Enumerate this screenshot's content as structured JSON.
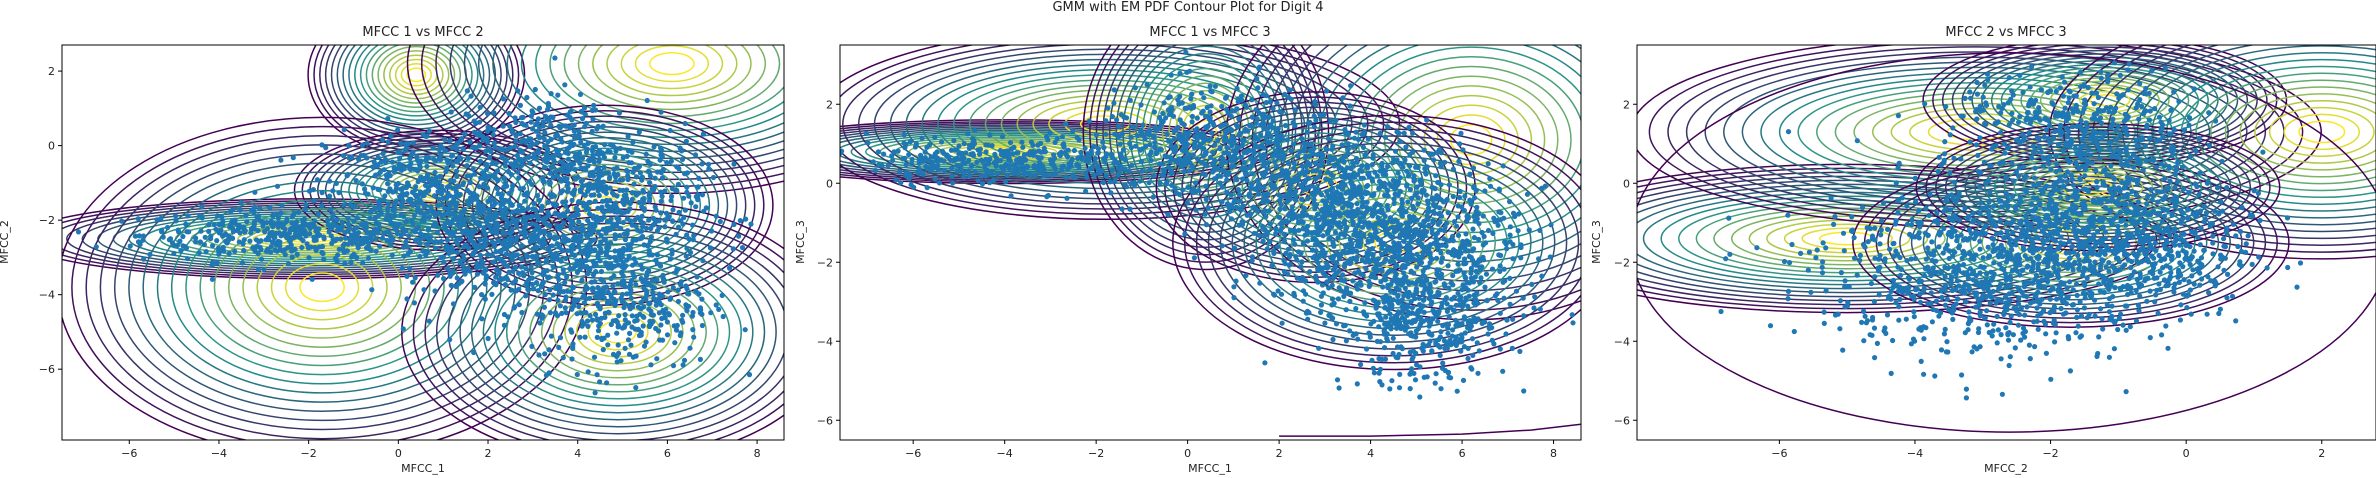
{
  "figure": {
    "title": "GMM with EM PDF Contour Plot for Digit 4"
  },
  "colors": {
    "points": "#1f77b4",
    "contour_low": "#440154",
    "contour_mid": "#21918c",
    "contour_high": "#fde725",
    "axes": "#000000"
  },
  "chart_data": [
    {
      "type": "scatter",
      "overlay": "contour",
      "title": "MFCC 1 vs MFCC 2",
      "xlabel": "MFCC_1",
      "ylabel": "MFCC_2",
      "xlim": [
        -7.5,
        8.6
      ],
      "ylim": [
        -7.9,
        2.7
      ],
      "xticks": [
        -6,
        -4,
        -2,
        0,
        2,
        4,
        6,
        8
      ],
      "yticks": [
        -6,
        -4,
        -2,
        0,
        2
      ],
      "grid": false,
      "scatter_clusters": [
        {
          "cx": -2.5,
          "cy": -2.4,
          "sx": 1.6,
          "sy": 0.35,
          "n": 420
        },
        {
          "cx": 0.8,
          "cy": -1.3,
          "sx": 1.2,
          "sy": 0.9,
          "n": 520
        },
        {
          "cx": 4.6,
          "cy": -1.7,
          "sx": 1.1,
          "sy": 1.0,
          "n": 620
        },
        {
          "cx": 5.0,
          "cy": -4.2,
          "sx": 1.0,
          "sy": 0.9,
          "n": 380
        },
        {
          "cx": 2.2,
          "cy": -2.8,
          "sx": 1.0,
          "sy": 0.8,
          "n": 300
        },
        {
          "cx": 3.2,
          "cy": 0.2,
          "sx": 0.8,
          "sy": 0.6,
          "n": 180
        }
      ],
      "components": [
        {
          "mx": -2.0,
          "my": -2.5,
          "sx": 2.4,
          "sy": 0.4
        },
        {
          "mx": 0.4,
          "my": 1.9,
          "sx": 0.9,
          "sy": 0.8
        },
        {
          "mx": 6.1,
          "my": 2.2,
          "sx": 2.2,
          "sy": 1.3
        },
        {
          "mx": 0.9,
          "my": -1.2,
          "sx": 1.2,
          "sy": 0.6
        },
        {
          "mx": 4.6,
          "my": -1.6,
          "sx": 1.4,
          "sy": 1.0
        },
        {
          "mx": -1.7,
          "my": -3.8,
          "sx": 2.2,
          "sy": 1.7
        },
        {
          "mx": 4.9,
          "my": -5.0,
          "sx": 1.8,
          "sy": 1.3
        }
      ]
    },
    {
      "type": "scatter",
      "overlay": "contour",
      "title": "MFCC 1 vs MFCC 3",
      "xlabel": "MFCC_1",
      "ylabel": "MFCC_3",
      "xlim": [
        -7.6,
        8.6
      ],
      "ylim": [
        -6.5,
        3.5
      ],
      "xticks": [
        -6,
        -4,
        -2,
        0,
        2,
        4,
        6,
        8
      ],
      "yticks": [
        -6,
        -4,
        -2,
        0,
        2
      ],
      "grid": false,
      "scatter_clusters": [
        {
          "cx": -4.0,
          "cy": 0.6,
          "sx": 1.5,
          "sy": 0.3,
          "n": 360
        },
        {
          "cx": 0.5,
          "cy": 1.0,
          "sx": 1.3,
          "sy": 0.7,
          "n": 480
        },
        {
          "cx": 4.6,
          "cy": -1.6,
          "sx": 1.3,
          "sy": 1.1,
          "n": 900
        },
        {
          "cx": 3.0,
          "cy": -0.3,
          "sx": 1.2,
          "sy": 0.9,
          "n": 520
        },
        {
          "cx": 5.2,
          "cy": -3.6,
          "sx": 0.9,
          "sy": 0.8,
          "n": 320
        }
      ],
      "components": [
        {
          "mx": -4.0,
          "my": 0.8,
          "sx": 2.2,
          "sy": 0.3
        },
        {
          "mx": -1.8,
          "my": 1.5,
          "sx": 2.4,
          "sy": 0.9
        },
        {
          "mx": 0.4,
          "my": 1.3,
          "sx": 1.0,
          "sy": 1.3
        },
        {
          "mx": 6.2,
          "my": 1.1,
          "sx": 2.0,
          "sy": 1.7
        },
        {
          "mx": 2.8,
          "my": -0.1,
          "sx": 1.3,
          "sy": 0.9
        },
        {
          "mx": 4.5,
          "my": -1.5,
          "sx": 1.8,
          "sy": 1.2
        }
      ],
      "extra_line": {
        "x": [
          2.0,
          4.0,
          6.0,
          7.5,
          8.6
        ],
        "y": [
          -6.4,
          -6.4,
          -6.35,
          -6.25,
          -6.1
        ]
      }
    },
    {
      "type": "scatter",
      "overlay": "contour",
      "title": "MFCC 2 vs MFCC 3",
      "xlabel": "MFCC_2",
      "ylabel": "MFCC_3",
      "xlim": [
        -8.1,
        2.8
      ],
      "ylim": [
        -6.5,
        3.5
      ],
      "xticks": [
        -6,
        -4,
        -2,
        0,
        2
      ],
      "yticks": [
        -6,
        -4,
        -2,
        0,
        2
      ],
      "grid": false,
      "scatter_clusters": [
        {
          "cx": -2.8,
          "cy": -2.2,
          "sx": 1.3,
          "sy": 1.1,
          "n": 900
        },
        {
          "cx": -1.4,
          "cy": -0.6,
          "sx": 0.9,
          "sy": 1.0,
          "n": 500
        },
        {
          "cx": -1.6,
          "cy": 1.6,
          "sx": 0.9,
          "sy": 0.6,
          "n": 300
        },
        {
          "cx": -0.6,
          "cy": -1.8,
          "sx": 0.8,
          "sy": 0.8,
          "n": 300
        }
      ],
      "components": [
        {
          "mx": -5.0,
          "my": -1.4,
          "sx": 1.8,
          "sy": 0.7
        },
        {
          "mx": -3.1,
          "my": 1.3,
          "sx": 1.9,
          "sy": 0.9
        },
        {
          "mx": -1.2,
          "my": 2.1,
          "sx": 1.0,
          "sy": 0.6
        },
        {
          "mx": 2.0,
          "my": 1.3,
          "sx": 1.5,
          "sy": 1.2
        },
        {
          "mx": -1.7,
          "my": -1.5,
          "sx": 1.2,
          "sy": 0.8
        },
        {
          "mx": -1.3,
          "my": -0.1,
          "sx": 1.0,
          "sy": 0.6
        }
      ],
      "extra_arc": {
        "mx": -2.6,
        "my": -1.5,
        "sx": 5.6,
        "sy": 4.8
      }
    }
  ]
}
